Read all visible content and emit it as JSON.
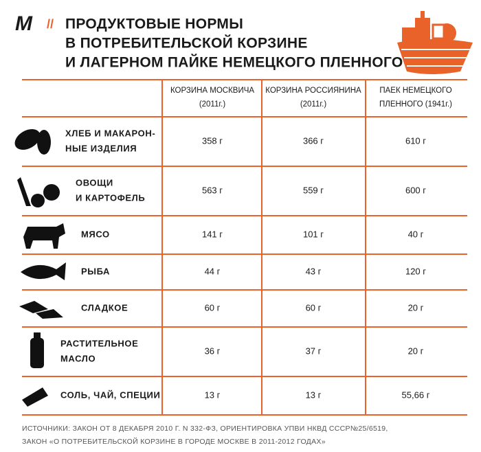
{
  "header": {
    "logo": "M",
    "separator": "//",
    "title": [
      "ПРОДУКТОВЫЕ НОРМЫ",
      "В ПОТРЕБИТЕЛЬСКОЙ КОРЗИНЕ",
      "И ЛАГЕРНОМ ПАЙКЕ НЕМЕЦКОГО ПЛЕННОГО"
    ]
  },
  "table": {
    "columns": [
      [
        "КОРЗИНА МОСКВИЧА",
        "(2011г.)"
      ],
      [
        "КОРЗИНА РОССИЯНИНА",
        "(2011г.)"
      ],
      [
        "ПАЕК НЕМЕЦКОГО",
        "ПЛЕННОГО (1941г.)"
      ]
    ],
    "rows": [
      {
        "label": [
          "ХЛЕБ И  МАКАРОН-",
          "НЫЕ ИЗДЕЛИЯ"
        ],
        "values": [
          "358 г",
          "366 г",
          "610 г"
        ]
      },
      {
        "label": [
          "ОВОЩИ",
          "И КАРТОФЕЛЬ"
        ],
        "values": [
          "563 г",
          "559 г",
          "600 г"
        ]
      },
      {
        "label": [
          "МЯСО"
        ],
        "values": [
          "141 г",
          "101 г",
          "40 г"
        ]
      },
      {
        "label": [
          "РЫБА"
        ],
        "values": [
          "44 г",
          "43 г",
          "120 г"
        ]
      },
      {
        "label": [
          "СЛАДКОЕ"
        ],
        "values": [
          "60 г",
          "60 г",
          "20 г"
        ]
      },
      {
        "label": [
          "РАСТИТЕЛЬНОЕ",
          "МАСЛО"
        ],
        "values": [
          "36 г",
          "37 г",
          "20 г"
        ]
      },
      {
        "label": [
          "СОЛЬ, ЧАЙ, СПЕЦИИ"
        ],
        "values": [
          "13 г",
          "13 г",
          "55,66 г"
        ]
      }
    ]
  },
  "footer": {
    "sources": [
      "ИСТОЧНИКИ:  ЗАКОН ОТ 8 ДЕКАБРЯ 2010 Г. N 332-ФЗ, ОРИЕНТИРОВКА УПВИ НКВД СССР№25/6519,",
      "ЗАКОН «О ПОТРЕБИТЕЛЬСКОЙ КОРЗИНЕ В ГОРОДЕ МОСКВЕ В 2011-2012 ГОДАХ»"
    ]
  }
}
